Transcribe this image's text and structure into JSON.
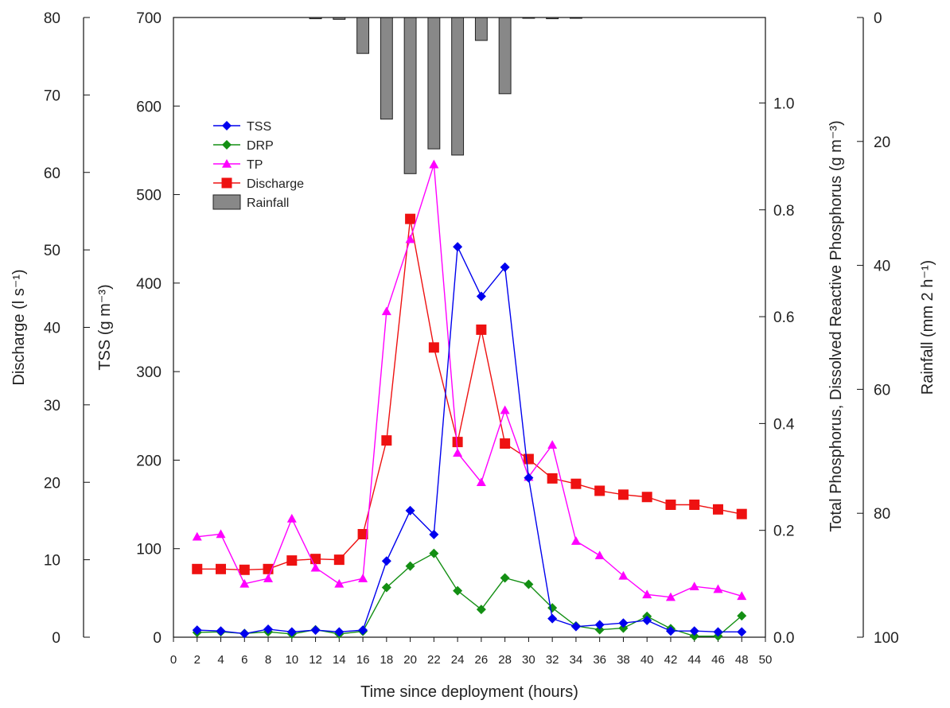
{
  "chart_data": {
    "type": "line",
    "xlabel": "Time since deployment (hours)",
    "xlim": [
      0,
      50
    ],
    "xticks": [
      0,
      2,
      4,
      6,
      8,
      10,
      12,
      14,
      16,
      18,
      20,
      22,
      24,
      26,
      28,
      30,
      32,
      34,
      36,
      38,
      40,
      42,
      44,
      46,
      48,
      50
    ],
    "axes": {
      "discharge": {
        "label": "Discharge (l s⁻¹)",
        "range": [
          0,
          80
        ],
        "ticks": [
          0,
          10,
          20,
          30,
          40,
          50,
          60,
          70,
          80
        ]
      },
      "tss": {
        "label": "TSS (g m⁻³)",
        "range": [
          0,
          700
        ],
        "ticks": [
          0,
          100,
          200,
          300,
          400,
          500,
          600,
          700
        ]
      },
      "phosphorus": {
        "label": "Total Phosphorus, Dissolved Reactive Phosphorus (g m⁻³)",
        "range": [
          0,
          1.16
        ],
        "ticks": [
          0.0,
          0.2,
          0.4,
          0.6,
          0.8,
          1.0
        ],
        "tick_labels": [
          "0.0",
          "0.2",
          "0.4",
          "0.6",
          "0.8",
          "1.0"
        ]
      },
      "rainfall": {
        "label": "Rainfall (mm 2 h⁻¹)",
        "range": [
          0,
          100
        ],
        "reversed": true,
        "ticks": [
          0,
          20,
          40,
          60,
          80,
          100
        ]
      }
    },
    "legend_position": "upper-left",
    "x": [
      2,
      4,
      6,
      8,
      10,
      12,
      14,
      16,
      18,
      20,
      22,
      24,
      26,
      28,
      30,
      32,
      34,
      36,
      38,
      40,
      42,
      44,
      46,
      48
    ],
    "series": [
      {
        "name": "TSS",
        "axis": "tss",
        "color": "#0000ee",
        "marker": "diamond",
        "values": [
          8,
          7,
          4,
          9,
          6,
          8,
          6,
          8,
          86,
          143,
          116,
          441,
          385,
          418,
          180,
          21,
          12,
          14,
          16,
          19,
          7,
          7,
          6,
          6
        ]
      },
      {
        "name": "DRP",
        "axis": "phosphorus",
        "color": "#138f13",
        "marker": "diamond",
        "values": [
          0.009,
          0.01,
          0.007,
          0.01,
          0.006,
          0.014,
          0.006,
          0.011,
          0.093,
          0.133,
          0.157,
          0.087,
          0.052,
          0.111,
          0.099,
          0.055,
          0.021,
          0.014,
          0.017,
          0.039,
          0.016,
          0.002,
          0.002,
          0.04
        ]
      },
      {
        "name": "TP",
        "axis": "phosphorus",
        "color": "#ff00ff",
        "marker": "triangle",
        "values": [
          0.188,
          0.193,
          0.1,
          0.11,
          0.222,
          0.13,
          0.1,
          0.11,
          0.61,
          0.745,
          0.885,
          0.345,
          0.29,
          0.425,
          0.3,
          0.36,
          0.18,
          0.153,
          0.115,
          0.08,
          0.075,
          0.095,
          0.09,
          0.077
        ]
      },
      {
        "name": "Discharge",
        "axis": "discharge",
        "color": "#ee1111",
        "marker": "square",
        "values": [
          8.8,
          8.8,
          8.7,
          8.8,
          9.9,
          10.1,
          10.0,
          13.3,
          25.4,
          54.0,
          37.4,
          25.2,
          39.7,
          25.0,
          23.0,
          20.5,
          19.8,
          18.9,
          18.4,
          18.1,
          17.1,
          17.1,
          16.5,
          15.9
        ]
      },
      {
        "name": "Rainfall",
        "axis": "rainfall",
        "type": "bar",
        "color": "#888888",
        "x": [
          12,
          14,
          16,
          18,
          20,
          22,
          24,
          26,
          28,
          30,
          32,
          34
        ],
        "values": [
          0.2,
          0.3,
          5.8,
          16.4,
          25.2,
          21.2,
          22.2,
          3.7,
          12.3,
          0.1,
          0.2,
          0.1
        ]
      }
    ]
  }
}
